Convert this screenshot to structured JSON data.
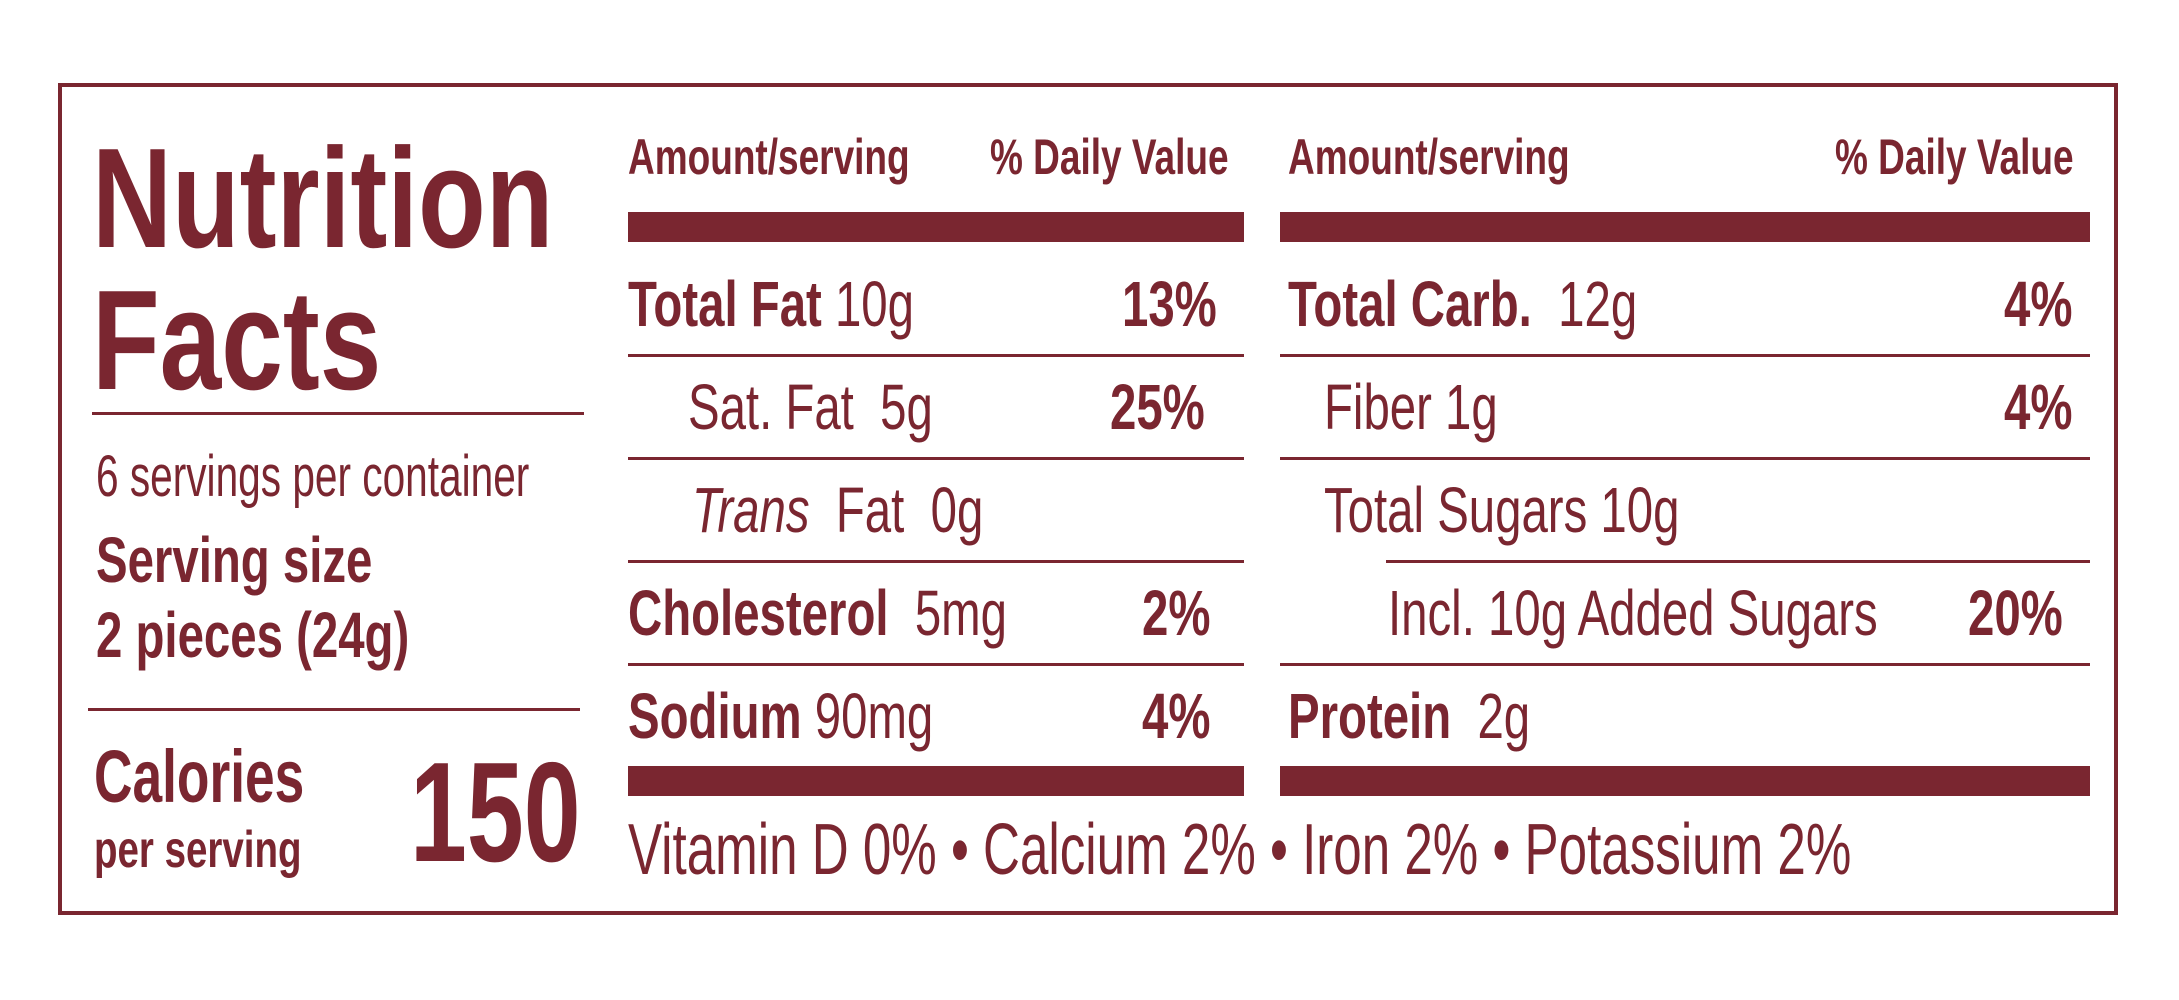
{
  "colors": {
    "ink": "#7a2630",
    "background": "#ffffff"
  },
  "left": {
    "title_line1": "Nutrition",
    "title_line2": "Facts",
    "servings_per_container": "6 servings per container",
    "serving_size_label": "Serving size",
    "serving_size_value": "2 pieces (24g)",
    "calories_label": "Calories",
    "calories_sublabel": "per serving",
    "calories_value": "150"
  },
  "col1": {
    "header_amount": "Amount/serving",
    "header_dv": "% Daily Value",
    "rows": [
      {
        "name": "Total Fat",
        "amount": "10g",
        "dv": "13%"
      },
      {
        "name": "Sat. Fat",
        "amount": "5g",
        "dv": "25%"
      },
      {
        "name": "Trans",
        "name_suffix": "Fat",
        "amount": "0g",
        "dv": ""
      },
      {
        "name": "Cholesterol",
        "amount": "5mg",
        "dv": "2%"
      },
      {
        "name": "Sodium",
        "amount": "90mg",
        "dv": "4%"
      }
    ]
  },
  "col2": {
    "header_amount": "Amount/serving",
    "header_dv": "% Daily Value",
    "rows": [
      {
        "name": "Total Carb.",
        "amount": "12g",
        "dv": "4%"
      },
      {
        "name": "Fiber",
        "amount": "1g",
        "dv": "4%"
      },
      {
        "name": "Total Sugars",
        "amount": "10g",
        "dv": ""
      },
      {
        "name": "Incl. 10g Added Sugars",
        "amount": "",
        "dv": "20%"
      },
      {
        "name": "Protein",
        "amount": "2g",
        "dv": ""
      }
    ]
  },
  "footer": {
    "vitamins": "Vitamin D 0% • Calcium 2% • Iron 2% • Potassium 2%"
  }
}
